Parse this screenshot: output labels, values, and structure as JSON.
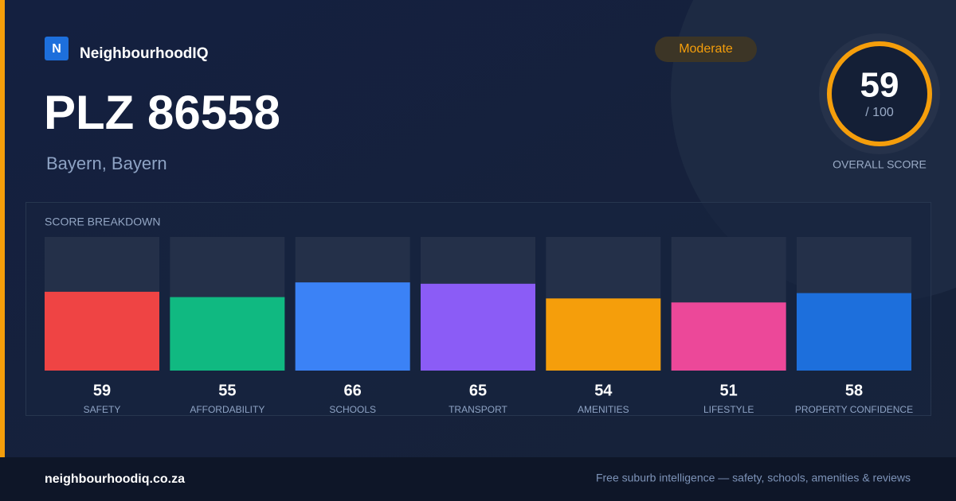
{
  "brand": "NeighbourhoodIQ",
  "logo_letter": "N",
  "title": "PLZ 86558",
  "subtitle": "Bayern, Bayern",
  "badge": "Moderate",
  "overall_score": {
    "value": "59",
    "max_label": "/ 100",
    "label": "OVERALL SCORE"
  },
  "chart_data": {
    "type": "bar",
    "title": "SCORE BREAKDOWN",
    "categories": [
      "SAFETY",
      "AFFORDABILITY",
      "SCHOOLS",
      "TRANSPORT",
      "AMENITIES",
      "LIFESTYLE",
      "PROPERTY CONFIDENCE"
    ],
    "values": [
      59,
      55,
      66,
      65,
      54,
      51,
      58
    ],
    "colors": [
      "#ef4444",
      "#10b981",
      "#3b82f6",
      "#8b5cf6",
      "#f59e0b",
      "#ec4899",
      "#1d6fdc"
    ],
    "ylim": [
      0,
      100
    ]
  },
  "footer": {
    "site": "neighbourhoodiq.co.za",
    "tagline": "Free suburb intelligence — safety, schools, amenities & reviews"
  }
}
